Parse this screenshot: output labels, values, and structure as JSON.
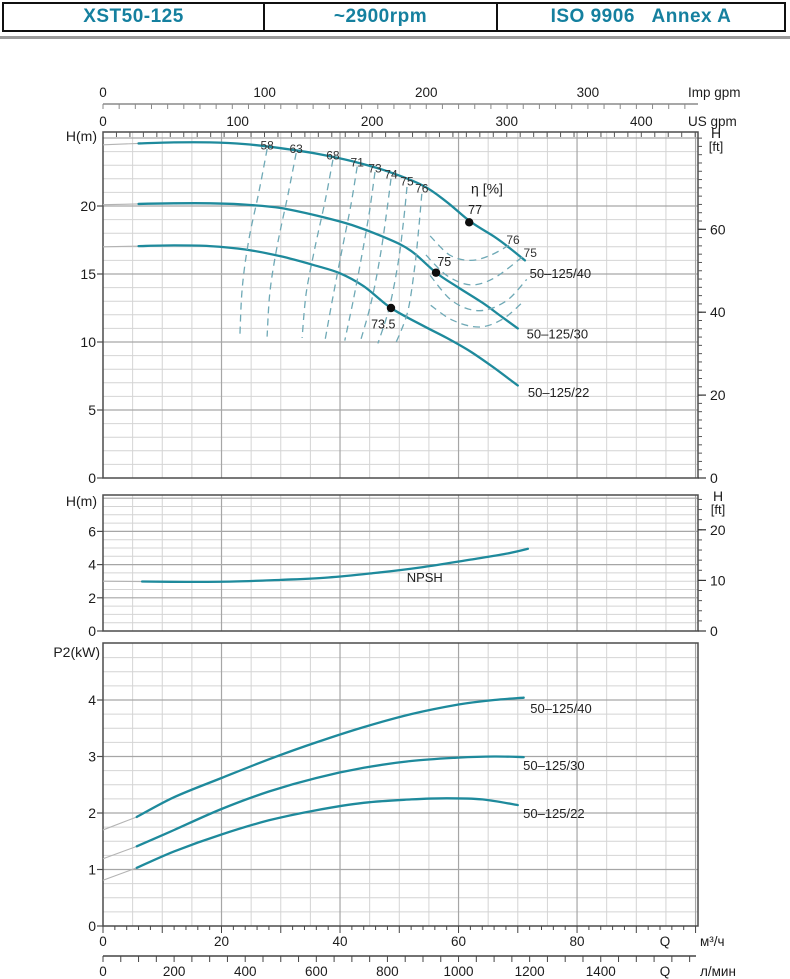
{
  "header": {
    "model": "XST50-125",
    "speed": "~2900rpm",
    "standard": "ISO 9906   Annex A"
  },
  "colors": {
    "curve": "#1e8a9c",
    "dashed": "#6fa9b6",
    "gray_lead": "#b3b3b3",
    "dot": "#0d0d0d",
    "grid_minor": "#d4d4d4",
    "grid_major": "#a6a6a6",
    "frame": "#4c4c4c",
    "text": "#1c1c1c",
    "accent_text": "#15809f"
  },
  "axes": {
    "imp_gpm": {
      "unit": "Imp gpm",
      "ticks": [
        0,
        100,
        200,
        300
      ]
    },
    "us_gpm": {
      "unit": "US gpm",
      "ticks": [
        0,
        100,
        200,
        300,
        400
      ]
    },
    "m3h": {
      "q": "Q",
      "unit": "м³/ч",
      "ticks": [
        0,
        20,
        40,
        60,
        80
      ]
    },
    "lmin": {
      "q": "Q",
      "unit": "л/мин",
      "ticks": [
        0,
        200,
        400,
        600,
        800,
        1000,
        1200,
        1400
      ]
    },
    "chart1_left": {
      "label": "H(m)",
      "ticks": [
        0,
        5,
        10,
        15,
        20
      ]
    },
    "chart1_right": {
      "label_h": "H",
      "label_ft": "[ft]",
      "ticks": [
        0,
        20,
        40,
        60
      ]
    },
    "chart2_left": {
      "label": "H(m)",
      "ticks": [
        0,
        2,
        4,
        6
      ]
    },
    "chart2_right": {
      "label_h": "H",
      "label_ft": "[ft]",
      "ticks": [
        0,
        10,
        20
      ]
    },
    "chart3_left": {
      "label": "P2(kW)",
      "ticks": [
        0,
        1,
        2,
        3,
        4
      ]
    }
  },
  "chart_data": [
    {
      "type": "line",
      "name": "head-curves",
      "ylabel": "H(m)",
      "xlabel": "Q",
      "series": [
        {
          "name": "50-125/40",
          "lead": [
            [
              0,
              24.5
            ],
            [
              6,
              24.6
            ]
          ],
          "points": [
            [
              6,
              24.6
            ],
            [
              12,
              24.68
            ],
            [
              18,
              24.68
            ],
            [
              24,
              24.55
            ],
            [
              30,
              24.25
            ],
            [
              36,
              23.85
            ],
            [
              42,
              23.3
            ],
            [
              48,
              22.55
            ],
            [
              54,
              21.5
            ],
            [
              58,
              20.3
            ],
            [
              62,
              18.85
            ],
            [
              66,
              17.75
            ],
            [
              68.5,
              16.95
            ],
            [
              71.2,
              16.0
            ]
          ]
        },
        {
          "name": "50-125/30",
          "lead": [
            [
              0,
              20.1
            ],
            [
              6,
              20.15
            ]
          ],
          "points": [
            [
              6,
              20.15
            ],
            [
              12,
              20.2
            ],
            [
              18,
              20.2
            ],
            [
              24,
              20.1
            ],
            [
              30,
              19.85
            ],
            [
              36,
              19.3
            ],
            [
              42,
              18.6
            ],
            [
              48,
              17.6
            ],
            [
              52,
              16.7
            ],
            [
              56.2,
              15.1
            ],
            [
              60,
              14.0
            ],
            [
              64,
              12.9
            ],
            [
              67,
              11.95
            ],
            [
              70,
              11.0
            ]
          ]
        },
        {
          "name": "50-125/22",
          "lead": [
            [
              0,
              17.0
            ],
            [
              6,
              17.05
            ]
          ],
          "points": [
            [
              6,
              17.05
            ],
            [
              12,
              17.1
            ],
            [
              18,
              17.05
            ],
            [
              24,
              16.8
            ],
            [
              30,
              16.3
            ],
            [
              36,
              15.6
            ],
            [
              40,
              15.05
            ],
            [
              44,
              14.1
            ],
            [
              48.6,
              12.5
            ],
            [
              54,
              11.2
            ],
            [
              58,
              10.3
            ],
            [
              62,
              9.3
            ],
            [
              66,
              8.1
            ],
            [
              70,
              6.8
            ]
          ]
        }
      ],
      "series_labels": [
        {
          "text": "50–125/40",
          "at": [
            72.0,
            15.0
          ]
        },
        {
          "text": "50–125/30",
          "at": [
            71.5,
            10.55
          ]
        },
        {
          "text": "50–125/22",
          "at": [
            71.7,
            6.25
          ]
        }
      ],
      "efficiency_contours": [
        {
          "label": "58",
          "label_at": [
            27.7,
            24.45
          ],
          "points": [
            [
              27.7,
              24.2
            ],
            [
              26.3,
              21.0
            ],
            [
              24.6,
              17.5
            ],
            [
              23.5,
              14.0
            ],
            [
              23.1,
              10.5
            ]
          ]
        },
        {
          "label": "63",
          "label_at": [
            32.6,
            24.2
          ],
          "points": [
            [
              32.6,
              23.9
            ],
            [
              31.2,
              20.8
            ],
            [
              29.5,
              17.3
            ],
            [
              28.2,
              13.8
            ],
            [
              27.7,
              10.4
            ]
          ]
        },
        {
          "label": "68",
          "label_at": [
            38.8,
            23.7
          ],
          "points": [
            [
              38.8,
              23.4
            ],
            [
              37.5,
              20.4
            ],
            [
              35.8,
              17.0
            ],
            [
              34.3,
              13.6
            ],
            [
              33.6,
              10.3
            ]
          ]
        },
        {
          "label": "71",
          "label_at": [
            42.9,
            23.2
          ],
          "points": [
            [
              42.9,
              22.9
            ],
            [
              41.8,
              20.0
            ],
            [
              40.3,
              16.7
            ],
            [
              38.8,
              13.3
            ],
            [
              37.5,
              10.2
            ]
          ]
        },
        {
          "label": "73",
          "label_at": [
            45.9,
            22.75
          ],
          "points": [
            [
              45.9,
              22.5
            ],
            [
              45.0,
              19.7
            ],
            [
              43.7,
              16.4
            ],
            [
              42.2,
              13.0
            ],
            [
              40.8,
              10.1
            ]
          ]
        },
        {
          "label": "74",
          "label_at": [
            48.6,
            22.3
          ],
          "points": [
            [
              48.6,
              22.0
            ],
            [
              47.8,
              19.3
            ],
            [
              46.7,
              16.1
            ],
            [
              45.2,
              12.8
            ],
            [
              43.4,
              10.0
            ]
          ]
        },
        {
          "label": "75",
          "label_at": [
            51.3,
            21.8
          ],
          "points": [
            [
              51.3,
              21.4
            ],
            [
              50.7,
              18.8
            ],
            [
              49.8,
              15.8
            ],
            [
              48.3,
              12.5
            ],
            [
              46.4,
              9.9
            ]
          ]
        },
        {
          "label": "76",
          "label_at": [
            53.8,
            21.3
          ],
          "points": [
            [
              53.8,
              20.9
            ],
            [
              53.3,
              18.4
            ],
            [
              52.6,
              15.5
            ],
            [
              51.4,
              12.2
            ],
            [
              49.3,
              9.8
            ]
          ]
        },
        {
          "label": "76",
          "label_at": [
            69.2,
            17.5
          ],
          "points": [
            [
              55.2,
              17.8
            ],
            [
              58.5,
              16.4
            ],
            [
              62.0,
              16.0
            ],
            [
              65.5,
              16.4
            ],
            [
              69.2,
              17.3
            ]
          ]
        },
        {
          "label": "75",
          "label_at": [
            72.1,
            16.55
          ],
          "points": [
            [
              54.5,
              16.4
            ],
            [
              58.0,
              14.9
            ],
            [
              62.0,
              14.2
            ],
            [
              66.0,
              14.7
            ],
            [
              70.9,
              16.3
            ]
          ]
        },
        {
          "label": "",
          "label_at": [
            0,
            0
          ],
          "points": [
            [
              55.2,
              14.9
            ],
            [
              59.0,
              13.0
            ],
            [
              63.5,
              12.3
            ],
            [
              68.0,
              13.0
            ],
            [
              71.5,
              14.6
            ]
          ]
        },
        {
          "label": "",
          "label_at": [
            0,
            0
          ],
          "points": [
            [
              55.3,
              12.7
            ],
            [
              59.0,
              11.6
            ],
            [
              63.5,
              11.1
            ],
            [
              67.5,
              11.7
            ],
            [
              71.0,
              13.0
            ]
          ]
        }
      ],
      "eta_label": {
        "text": "η [%]",
        "at": [
          64.8,
          21.2
        ]
      },
      "bep_points": [
        {
          "label": "77",
          "at": [
            61.8,
            18.8
          ],
          "label_at": [
            62.8,
            19.7
          ]
        },
        {
          "label": "75",
          "at": [
            56.2,
            15.1
          ],
          "label_at": [
            57.6,
            15.9
          ]
        },
        {
          "label": "73.5",
          "at": [
            48.6,
            12.5
          ],
          "label_at": [
            47.3,
            11.3
          ]
        }
      ]
    },
    {
      "type": "line",
      "name": "npsh-curve",
      "ylabel": "H(m)",
      "series": [
        {
          "name": "NPSH",
          "lead": [
            [
              0,
              3.0
            ],
            [
              6.6,
              2.98
            ]
          ],
          "points": [
            [
              6.6,
              2.98
            ],
            [
              14,
              2.96
            ],
            [
              22,
              2.98
            ],
            [
              30,
              3.08
            ],
            [
              38,
              3.22
            ],
            [
              46,
              3.5
            ],
            [
              54,
              3.85
            ],
            [
              62,
              4.3
            ],
            [
              68,
              4.65
            ],
            [
              71.7,
              4.95
            ]
          ]
        }
      ],
      "series_labels": [
        {
          "text": "NPSH",
          "at": [
            54.3,
            3.18
          ]
        }
      ]
    },
    {
      "type": "line",
      "name": "power-curves",
      "ylabel": "P2(kW)",
      "series": [
        {
          "name": "50-125/40",
          "lead": [
            [
              0,
              1.7
            ],
            [
              5.7,
              1.93
            ]
          ],
          "points": [
            [
              5.7,
              1.93
            ],
            [
              12,
              2.28
            ],
            [
              20,
              2.62
            ],
            [
              28,
              2.95
            ],
            [
              36,
              3.25
            ],
            [
              44,
              3.52
            ],
            [
              52,
              3.75
            ],
            [
              60,
              3.92
            ],
            [
              66,
              4.0
            ],
            [
              71,
              4.04
            ]
          ]
        },
        {
          "name": "50-125/30",
          "lead": [
            [
              0,
              1.19
            ],
            [
              5.7,
              1.41
            ]
          ],
          "points": [
            [
              5.7,
              1.41
            ],
            [
              12,
              1.7
            ],
            [
              20,
              2.07
            ],
            [
              28,
              2.38
            ],
            [
              36,
              2.62
            ],
            [
              44,
              2.8
            ],
            [
              52,
              2.92
            ],
            [
              60,
              2.98
            ],
            [
              66,
              3.0
            ],
            [
              71,
              2.99
            ]
          ]
        },
        {
          "name": "50-125/22",
          "lead": [
            [
              0,
              0.81
            ],
            [
              5.7,
              1.03
            ]
          ],
          "points": [
            [
              5.7,
              1.03
            ],
            [
              12,
              1.32
            ],
            [
              20,
              1.62
            ],
            [
              28,
              1.87
            ],
            [
              36,
              2.05
            ],
            [
              44,
              2.18
            ],
            [
              52,
              2.24
            ],
            [
              58,
              2.26
            ],
            [
              64,
              2.24
            ],
            [
              70,
              2.14
            ]
          ]
        }
      ],
      "series_labels": [
        {
          "text": "50–125/40",
          "at": [
            72.1,
            3.84
          ]
        },
        {
          "text": "50–125/30",
          "at": [
            70.9,
            2.83
          ]
        },
        {
          "text": "50–125/22",
          "at": [
            70.9,
            1.98
          ]
        }
      ]
    }
  ]
}
